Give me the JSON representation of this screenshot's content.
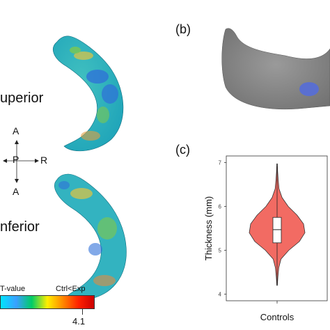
{
  "panel_a": {
    "view_top_label": "uperior",
    "view_bottom_label": "nferior",
    "orientation": {
      "anterior_top": "A",
      "posterior": "P",
      "right": "R",
      "anterior_bottom": "A"
    },
    "colorbar": {
      "title": "T-value",
      "right_note": "Ctrl<Exp",
      "max_label": "4.1",
      "stops": [
        "#00e5ff",
        "#3aa0ff",
        "#00cc66",
        "#ffee00",
        "#ff8800",
        "#ff2200",
        "#cc0000"
      ]
    },
    "surface_colors": {
      "base": "#2fb8c8",
      "green": "#7cc850",
      "yellow": "#e2c440",
      "blue": "#2f6fd8"
    }
  },
  "panel_b": {
    "letter": "(b)",
    "surface_color": "#8f8f8f",
    "highlight_color": "#5a6fd0"
  },
  "panel_c": {
    "letter": "(c)",
    "chart_data": {
      "type": "violin",
      "categories": [
        "Controls"
      ],
      "ylabel": "Thickness (mm)",
      "xlabel": "",
      "ylim": [
        4,
        7
      ],
      "yticks": [
        4,
        5,
        6,
        7
      ],
      "box": {
        "min": 4.2,
        "q1": 5.17,
        "median": 5.47,
        "q3": 5.75,
        "max": 6.97
      },
      "fill": "#f26b63",
      "density": [
        [
          4.2,
          0.01
        ],
        [
          4.4,
          0.03
        ],
        [
          4.6,
          0.06
        ],
        [
          4.8,
          0.14
        ],
        [
          5.0,
          0.42
        ],
        [
          5.2,
          0.8
        ],
        [
          5.4,
          1.0
        ],
        [
          5.6,
          0.95
        ],
        [
          5.8,
          0.72
        ],
        [
          6.0,
          0.4
        ],
        [
          6.2,
          0.18
        ],
        [
          6.4,
          0.07
        ],
        [
          6.6,
          0.04
        ],
        [
          6.8,
          0.02
        ],
        [
          6.97,
          0.01
        ]
      ]
    }
  }
}
